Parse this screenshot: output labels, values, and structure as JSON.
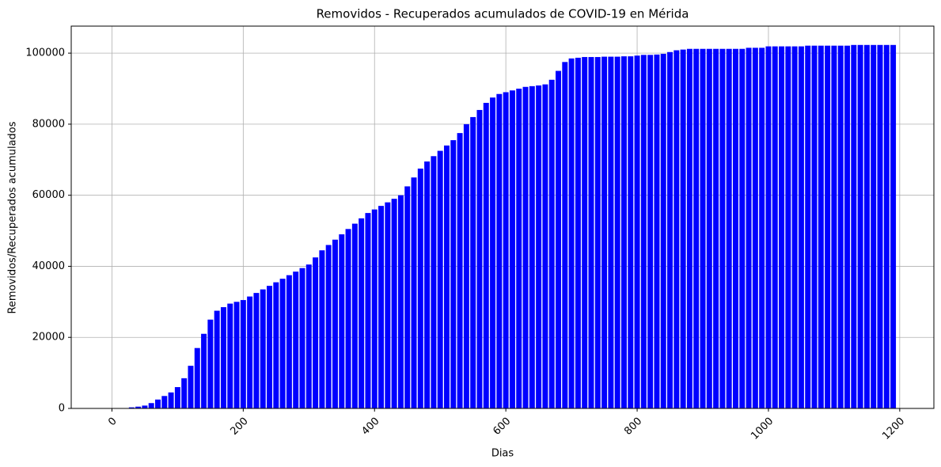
{
  "chart_data": {
    "type": "bar",
    "title": "Removidos - Recuperados acumulados de COVID-19 en Mérida",
    "x_label": "Dias",
    "y_label": "Removidos/Recuperados acumulados",
    "color": "#0000ff",
    "grid": true,
    "x": [
      0,
      10,
      20,
      30,
      40,
      50,
      60,
      70,
      80,
      90,
      100,
      110,
      120,
      130,
      140,
      150,
      160,
      170,
      180,
      190,
      200,
      210,
      220,
      230,
      240,
      250,
      260,
      270,
      280,
      290,
      300,
      310,
      320,
      330,
      340,
      350,
      360,
      370,
      380,
      390,
      400,
      410,
      420,
      430,
      440,
      450,
      460,
      470,
      480,
      490,
      500,
      510,
      520,
      530,
      540,
      550,
      560,
      570,
      580,
      590,
      600,
      610,
      620,
      630,
      640,
      650,
      660,
      670,
      680,
      690,
      700,
      710,
      720,
      730,
      740,
      750,
      760,
      770,
      780,
      790,
      800,
      810,
      820,
      830,
      840,
      850,
      860,
      870,
      880,
      890,
      900,
      910,
      920,
      930,
      940,
      950,
      960,
      970,
      980,
      990,
      1000,
      1010,
      1020,
      1030,
      1040,
      1050,
      1060,
      1070,
      1080,
      1090,
      1100,
      1110,
      1120,
      1130,
      1140,
      1150,
      1160,
      1170,
      1180,
      1190
    ],
    "values": [
      0,
      0,
      0,
      300,
      500,
      800,
      1500,
      2500,
      3500,
      4500,
      6000,
      8500,
      12000,
      17000,
      21000,
      25000,
      27500,
      28500,
      29500,
      30000,
      30500,
      31500,
      32500,
      33500,
      34500,
      35500,
      36500,
      37500,
      38500,
      39500,
      40500,
      42500,
      44500,
      46000,
      47500,
      49000,
      50500,
      52000,
      53500,
      55000,
      56000,
      57000,
      58000,
      59000,
      60000,
      62500,
      65000,
      67500,
      69500,
      71000,
      72500,
      74000,
      75500,
      77500,
      80000,
      82000,
      84000,
      86000,
      87500,
      88500,
      89000,
      89500,
      90000,
      90500,
      90700,
      90900,
      91200,
      92500,
      95000,
      97500,
      98500,
      98700,
      98900,
      98900,
      98900,
      99000,
      99000,
      99000,
      99100,
      99100,
      99300,
      99500,
      99500,
      99600,
      99800,
      100300,
      100800,
      101000,
      101200,
      101200,
      101200,
      101200,
      101200,
      101200,
      101200,
      101200,
      101200,
      101500,
      101500,
      101500,
      101900,
      101900,
      101900,
      101900,
      101900,
      101900,
      102100,
      102100,
      102100,
      102100,
      102100,
      102100,
      102100,
      102300,
      102300,
      102300,
      102300,
      102300,
      102300,
      102300
    ],
    "xlim": [
      -62,
      1252
    ],
    "ylim": [
      0,
      107600
    ],
    "xticks": [
      0,
      200,
      400,
      600,
      800,
      1000,
      1200
    ],
    "yticks": [
      0,
      20000,
      40000,
      60000,
      80000,
      100000
    ]
  }
}
